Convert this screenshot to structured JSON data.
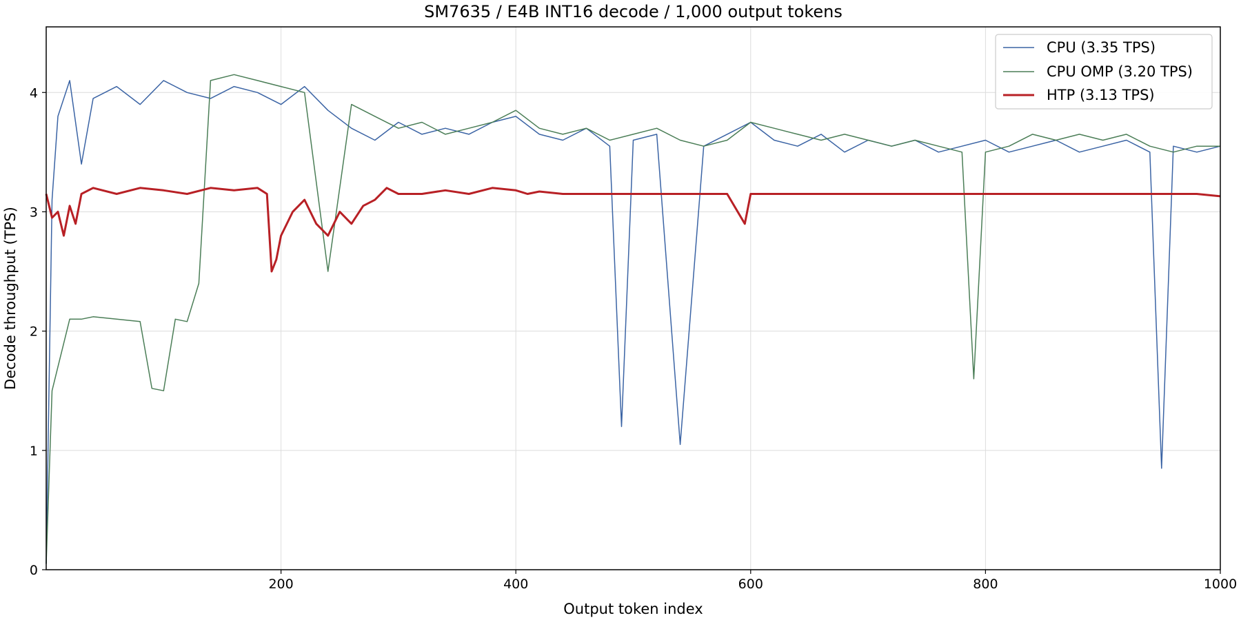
{
  "chart_data": {
    "type": "line",
    "title": "SM7635 / E4B INT16 decode / 1,000 output tokens",
    "xlabel": "Output token index",
    "ylabel": "Decode throughput (TPS)",
    "xlim": [
      0,
      1000
    ],
    "ylim": [
      0,
      4.55
    ],
    "xticks": [
      200,
      400,
      600,
      800,
      1000
    ],
    "yticks": [
      0,
      1,
      2,
      3,
      4
    ],
    "xtick_labels": [
      "200",
      "400",
      "600",
      "800",
      "1000"
    ],
    "ytick_labels": [
      "0",
      "1",
      "2",
      "3",
      "4"
    ],
    "grid": true,
    "legend_position": "top-right",
    "series": [
      {
        "name": "CPU (3.35 TPS)",
        "color": "#3a63a4",
        "x": [
          0,
          5,
          10,
          20,
          30,
          40,
          60,
          80,
          100,
          120,
          140,
          160,
          180,
          200,
          220,
          240,
          260,
          280,
          300,
          320,
          340,
          360,
          380,
          400,
          420,
          440,
          460,
          480,
          490,
          500,
          520,
          540,
          560,
          580,
          600,
          620,
          640,
          660,
          680,
          700,
          720,
          740,
          760,
          780,
          800,
          820,
          840,
          860,
          880,
          900,
          920,
          940,
          950,
          960,
          980,
          1000
        ],
        "values": [
          0.05,
          3.1,
          3.8,
          4.1,
          3.4,
          3.95,
          4.05,
          3.9,
          4.1,
          4.0,
          3.95,
          4.05,
          4.0,
          3.9,
          4.05,
          3.85,
          3.7,
          3.6,
          3.75,
          3.65,
          3.7,
          3.65,
          3.75,
          3.8,
          3.65,
          3.6,
          3.7,
          3.55,
          1.2,
          3.6,
          3.65,
          1.05,
          3.55,
          3.65,
          3.75,
          3.6,
          3.55,
          3.65,
          3.5,
          3.6,
          3.55,
          3.6,
          3.5,
          3.55,
          3.6,
          3.5,
          3.55,
          3.6,
          3.5,
          3.55,
          3.6,
          3.5,
          0.85,
          3.55,
          3.5,
          3.55
        ]
      },
      {
        "name": "CPU OMP (3.20 TPS)",
        "color": "#4a7d56",
        "x": [
          0,
          5,
          10,
          20,
          30,
          40,
          60,
          80,
          90,
          100,
          110,
          120,
          130,
          140,
          160,
          180,
          200,
          220,
          240,
          260,
          280,
          300,
          320,
          340,
          360,
          380,
          400,
          420,
          440,
          460,
          480,
          500,
          520,
          540,
          560,
          580,
          600,
          620,
          640,
          660,
          680,
          700,
          720,
          740,
          760,
          780,
          790,
          800,
          820,
          840,
          860,
          880,
          900,
          920,
          940,
          960,
          980,
          1000
        ],
        "values": [
          0.05,
          1.5,
          1.7,
          2.1,
          2.1,
          2.12,
          2.1,
          2.08,
          1.52,
          1.5,
          2.1,
          2.08,
          2.4,
          4.1,
          4.15,
          4.1,
          4.05,
          4.0,
          2.5,
          3.9,
          3.8,
          3.7,
          3.75,
          3.65,
          3.7,
          3.75,
          3.85,
          3.7,
          3.65,
          3.7,
          3.6,
          3.65,
          3.7,
          3.6,
          3.55,
          3.6,
          3.75,
          3.7,
          3.65,
          3.6,
          3.65,
          3.6,
          3.55,
          3.6,
          3.55,
          3.5,
          1.6,
          3.5,
          3.55,
          3.65,
          3.6,
          3.65,
          3.6,
          3.65,
          3.55,
          3.5,
          3.55,
          3.55
        ]
      },
      {
        "name": "HTP (3.13 TPS)",
        "color": "#b82025",
        "x": [
          0,
          5,
          10,
          15,
          20,
          25,
          30,
          40,
          60,
          80,
          100,
          120,
          140,
          160,
          180,
          188,
          192,
          196,
          200,
          210,
          220,
          230,
          240,
          250,
          260,
          270,
          280,
          290,
          300,
          320,
          340,
          360,
          380,
          400,
          410,
          420,
          440,
          460,
          480,
          500,
          520,
          540,
          560,
          580,
          595,
          600,
          620,
          640,
          660,
          680,
          700,
          720,
          740,
          760,
          780,
          800,
          820,
          840,
          860,
          880,
          900,
          920,
          940,
          960,
          980,
          1000
        ],
        "values": [
          3.15,
          2.95,
          3.0,
          2.8,
          3.05,
          2.9,
          3.15,
          3.2,
          3.15,
          3.2,
          3.18,
          3.15,
          3.2,
          3.18,
          3.2,
          3.15,
          2.5,
          2.6,
          2.8,
          3.0,
          3.1,
          2.9,
          2.8,
          3.0,
          2.9,
          3.05,
          3.1,
          3.2,
          3.15,
          3.15,
          3.18,
          3.15,
          3.2,
          3.18,
          3.15,
          3.17,
          3.15,
          3.15,
          3.15,
          3.15,
          3.15,
          3.15,
          3.15,
          3.15,
          2.9,
          3.15,
          3.15,
          3.15,
          3.15,
          3.15,
          3.15,
          3.15,
          3.15,
          3.15,
          3.15,
          3.15,
          3.15,
          3.15,
          3.15,
          3.15,
          3.15,
          3.15,
          3.15,
          3.15,
          3.15,
          3.13
        ]
      }
    ]
  }
}
